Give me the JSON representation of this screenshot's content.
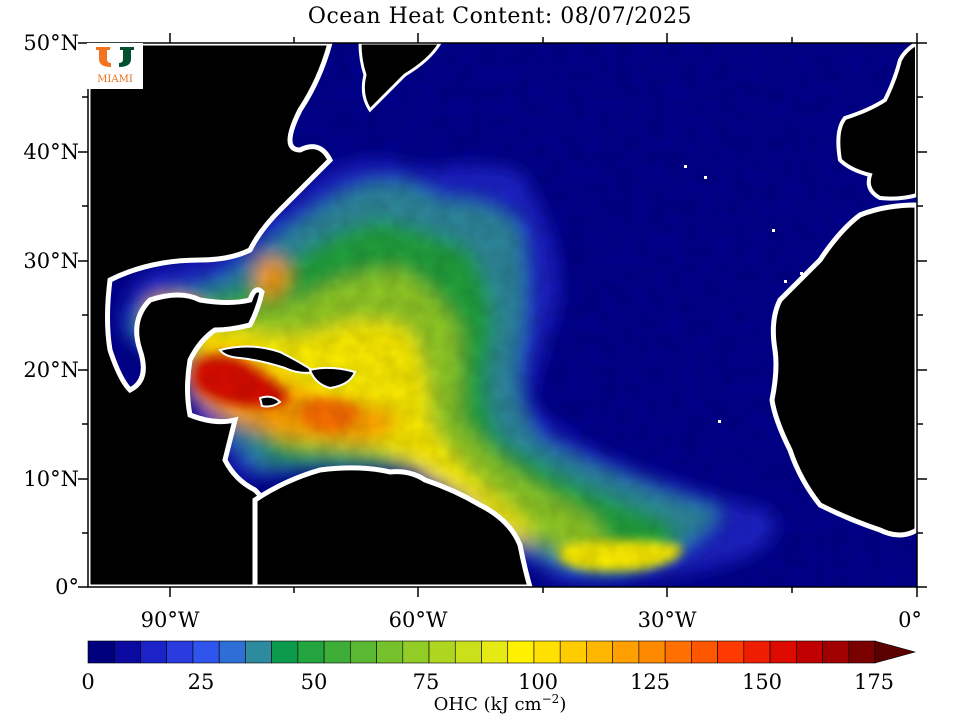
{
  "title": "Ocean Heat Content: 08/07/2025",
  "logo": {
    "text": "MIAMI",
    "colors": {
      "orange": "#f47321",
      "green": "#005030"
    }
  },
  "map": {
    "lat_labels": [
      "50°N",
      "40°N",
      "30°N",
      "20°N",
      "10°N",
      "0°"
    ],
    "lon_labels": [
      "90°W",
      "60°W",
      "30°W",
      "0°"
    ],
    "colors": {
      "land": "#000000",
      "coast": "#ffffff",
      "cold": "#00008f",
      "warm": "#d41a00"
    }
  },
  "colorbar": {
    "ticks": [
      "0",
      "25",
      "50",
      "75",
      "100",
      "125",
      "150",
      "175"
    ],
    "label": "OHC (kJ cm",
    "label_sup": "−2",
    "label_end": ")",
    "colors": [
      "#00007f",
      "#0a0aa0",
      "#1b22c8",
      "#2a3ce0",
      "#2f55ec",
      "#2d6fd6",
      "#2e8a9e",
      "#0d9a4d",
      "#24a43e",
      "#3eae38",
      "#5ab832",
      "#76c22c",
      "#92cc26",
      "#aed620",
      "#cae01a",
      "#e6ea14",
      "#fff000",
      "#ffe000",
      "#ffcc00",
      "#ffb600",
      "#ffa000",
      "#ff8a00",
      "#ff7000",
      "#ff5600",
      "#ff3a00",
      "#f01e00",
      "#dc0a00",
      "#c00000",
      "#a00000",
      "#7a0000"
    ],
    "range": [
      0,
      175
    ],
    "extend": "max"
  }
}
